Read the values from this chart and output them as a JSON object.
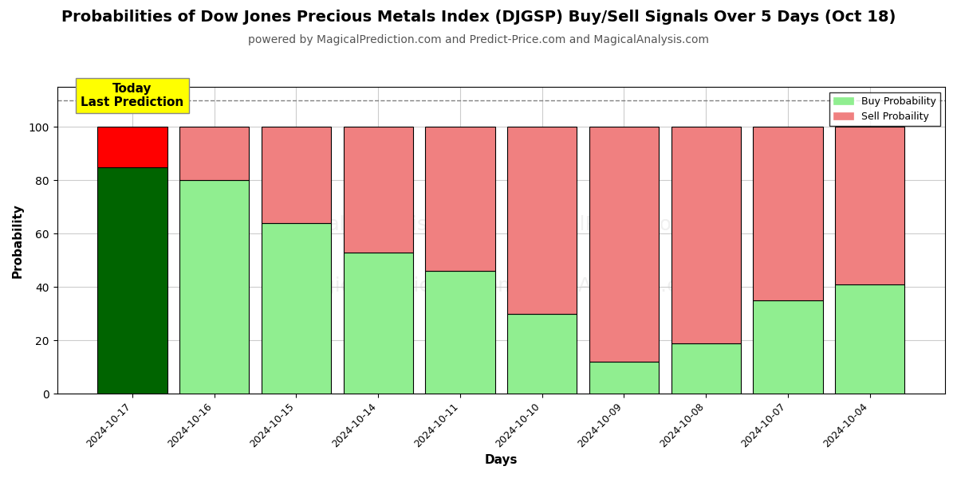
{
  "title": "Probabilities of Dow Jones Precious Metals Index (DJGSP) Buy/Sell Signals Over 5 Days (Oct 18)",
  "subtitle": "powered by MagicalPrediction.com and Predict-Price.com and MagicalAnalysis.com",
  "xlabel": "Days",
  "ylabel": "Probability",
  "categories": [
    "2024-10-17",
    "2024-10-16",
    "2024-10-15",
    "2024-10-14",
    "2024-10-11",
    "2024-10-10",
    "2024-10-09",
    "2024-10-08",
    "2024-10-07",
    "2024-10-04"
  ],
  "buy_values": [
    85,
    80,
    64,
    53,
    46,
    30,
    12,
    19,
    35,
    41
  ],
  "sell_values": [
    15,
    20,
    36,
    47,
    54,
    70,
    88,
    81,
    65,
    59
  ],
  "today_bar_buy_color": "#006400",
  "today_bar_sell_color": "#ff0000",
  "buy_color": "#90EE90",
  "sell_color": "#f08080",
  "dashed_line_y": 110,
  "ylim": [
    0,
    115
  ],
  "yticks": [
    0,
    20,
    40,
    60,
    80,
    100
  ],
  "watermark_lines": [
    "MagicalAnalysis.com",
    "MagicalPrediction.com"
  ],
  "watermark_center": "calAnalysis.com  |  MagicalPrediction.com",
  "annotation_text": "Today\nLast Prediction",
  "annotation_bg": "#ffff00",
  "legend_buy_label": "Buy Probability",
  "legend_sell_label": "Sell Probaility",
  "background_color": "#ffffff",
  "grid_color": "#cccccc",
  "title_fontsize": 14,
  "subtitle_fontsize": 10,
  "bar_edgecolor": "#000000",
  "bar_linewidth": 0.8,
  "bar_width": 0.85
}
